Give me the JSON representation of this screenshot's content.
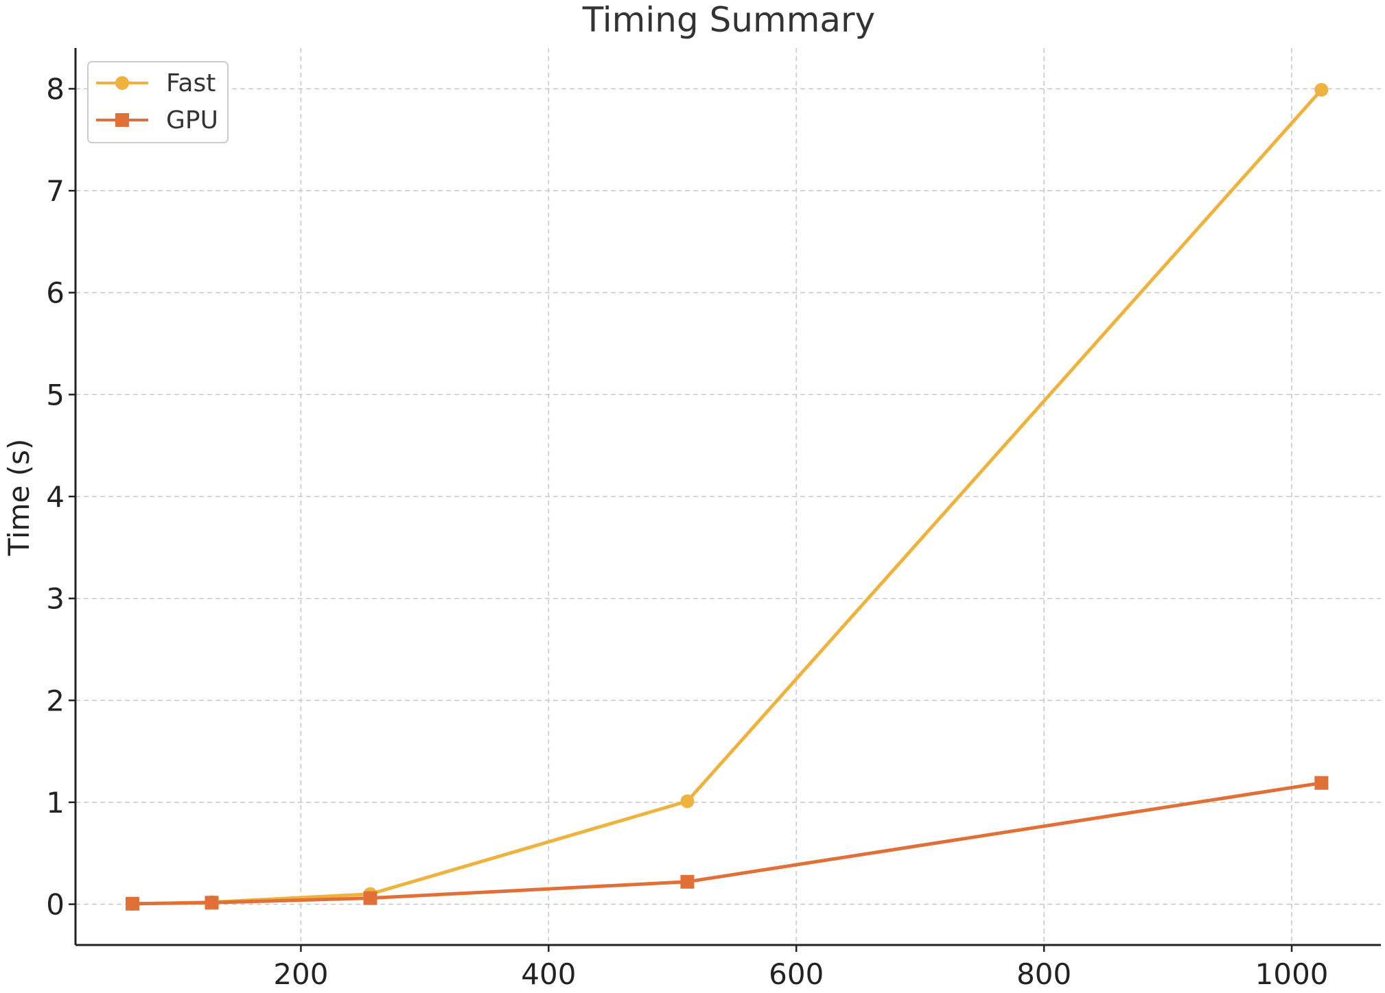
{
  "chart_data": {
    "type": "line",
    "title": "Timing Summary",
    "xlabel": "",
    "ylabel": "Time (s)",
    "xlim": [
      18,
      1072
    ],
    "ylim": [
      -0.4,
      8.4
    ],
    "xticks": [
      200,
      400,
      600,
      800,
      1000
    ],
    "yticks": [
      0,
      1,
      2,
      3,
      4,
      5,
      6,
      7,
      8
    ],
    "grid": true,
    "legend_position": "top-left",
    "x": [
      64,
      128,
      256,
      512,
      1024
    ],
    "series": [
      {
        "name": "Fast",
        "color": "#EEB33F",
        "marker": "circle",
        "values": [
          0.004,
          0.02,
          0.1,
          1.01,
          7.99
        ]
      },
      {
        "name": "GPU",
        "color": "#E07038",
        "marker": "square",
        "values": [
          0.005,
          0.015,
          0.06,
          0.22,
          1.19
        ]
      }
    ]
  }
}
